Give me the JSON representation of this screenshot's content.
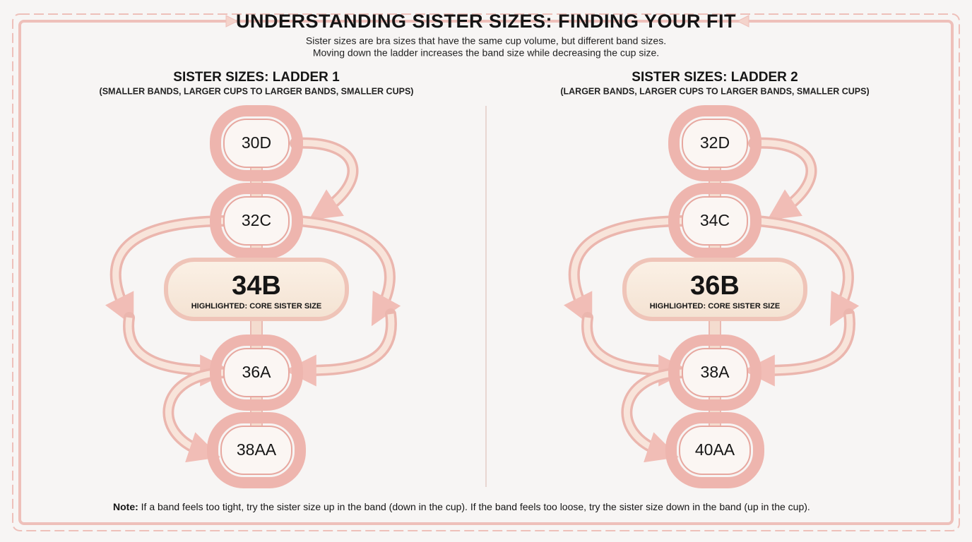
{
  "header": {
    "title": "UNDERSTANDING SISTER SIZES: FINDING YOUR FIT",
    "subtitle": [
      "Sister sizes are bra sizes that have the same cup volume, but different band sizes.",
      "Moving down the ladder increases the band size while decreasing the cup size."
    ]
  },
  "ladders": [
    {
      "title": "SISTER SIZES: LADDER 1",
      "subtitle": "(SMALLER BANDS, LARGER CUPS TO LARGER BANDS, SMALLER CUPS)",
      "nodes": [
        "30D",
        "32C",
        "34B",
        "36A",
        "38AA"
      ],
      "highlight_caption": "HIGHLIGHTED: CORE SISTER SIZE"
    },
    {
      "title": "SISTER SIZES: LADDER 2",
      "subtitle": "(LARGER BANDS, LARGER CUPS TO LARGER BANDS, SMALLER CUPS)",
      "nodes": [
        "32D",
        "34C",
        "36B",
        "38A",
        "40AA"
      ],
      "highlight_caption": "HIGHLIGHTED: CORE SISTER SIZE"
    }
  ],
  "note": {
    "label": "Note:",
    "text": "If a band feels too tight, try the sister size up in the band (down in the cup). If the band feels too loose, try the sister size down in the band (up in the cup)."
  }
}
